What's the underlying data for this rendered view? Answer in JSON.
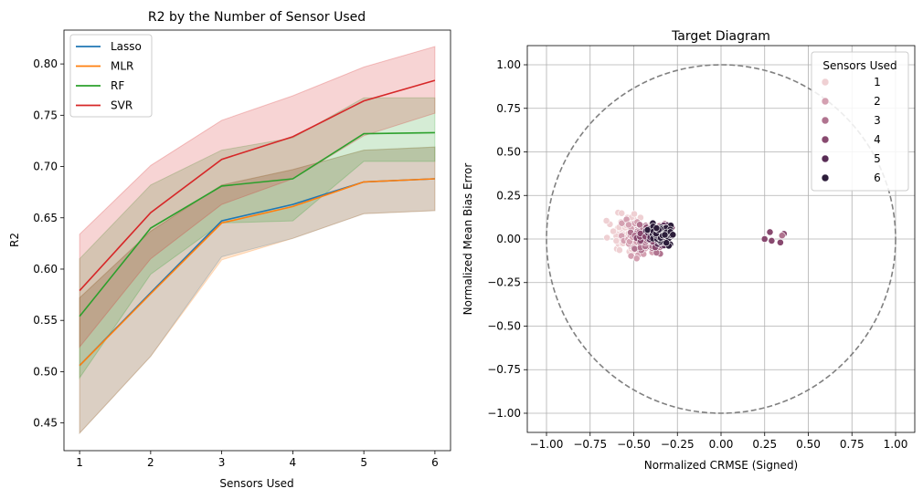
{
  "chart_data": [
    {
      "type": "line",
      "title": "R2 by the Number of Sensor Used",
      "xlabel": "Sensors Used",
      "ylabel": "R2",
      "x": [
        1,
        2,
        3,
        4,
        5,
        6
      ],
      "xlim": [
        0.78,
        6.22
      ],
      "ylim": [
        0.423,
        0.833
      ],
      "xticks": [
        "1",
        "2",
        "3",
        "4",
        "5",
        "6"
      ],
      "yticks": [
        "0.45",
        "0.50",
        "0.55",
        "0.60",
        "0.65",
        "0.70",
        "0.75",
        "0.80"
      ],
      "ytick_values": [
        0.45,
        0.5,
        0.55,
        0.6,
        0.65,
        0.7,
        0.75,
        0.8
      ],
      "legend": "upper-left",
      "series": [
        {
          "name": "Lasso",
          "color": "#1f77b4",
          "values": [
            0.506,
            0.577,
            0.647,
            0.663,
            0.685,
            0.688
          ],
          "ci_low": [
            0.44,
            0.515,
            0.612,
            0.63,
            0.654,
            0.657
          ],
          "ci_high": [
            0.572,
            0.637,
            0.682,
            0.697,
            0.716,
            0.719
          ]
        },
        {
          "name": "MLR",
          "color": "#ff7f0e",
          "values": [
            0.506,
            0.576,
            0.645,
            0.661,
            0.685,
            0.688
          ],
          "ci_low": [
            0.44,
            0.515,
            0.609,
            0.63,
            0.654,
            0.657
          ],
          "ci_high": [
            0.572,
            0.637,
            0.682,
            0.697,
            0.716,
            0.719
          ]
        },
        {
          "name": "RF",
          "color": "#2ca02c",
          "values": [
            0.554,
            0.64,
            0.681,
            0.688,
            0.732,
            0.733
          ],
          "ci_low": [
            0.494,
            0.595,
            0.645,
            0.647,
            0.705,
            0.705
          ],
          "ci_high": [
            0.61,
            0.682,
            0.716,
            0.728,
            0.767,
            0.767
          ]
        },
        {
          "name": "SVR",
          "color": "#d62728",
          "values": [
            0.579,
            0.655,
            0.707,
            0.729,
            0.764,
            0.784
          ],
          "ci_low": [
            0.524,
            0.61,
            0.663,
            0.688,
            0.73,
            0.752
          ],
          "ci_high": [
            0.634,
            0.701,
            0.745,
            0.769,
            0.797,
            0.817
          ]
        }
      ]
    },
    {
      "type": "scatter",
      "title": "Target Diagram",
      "xlabel": "Normalized CRMSE (Signed)",
      "ylabel": "Normalized Mean Bias Error",
      "xlim": [
        -1.11,
        1.11
      ],
      "ylim": [
        -1.11,
        1.11
      ],
      "xticks": [
        "−1.00",
        "−0.75",
        "−0.50",
        "−0.25",
        "0.00",
        "0.25",
        "0.50",
        "0.75",
        "1.00"
      ],
      "xtick_values": [
        -1.0,
        -0.75,
        -0.5,
        -0.25,
        0.0,
        0.25,
        0.5,
        0.75,
        1.0
      ],
      "yticks": [
        "−1.00",
        "−0.75",
        "−0.50",
        "−0.25",
        "0.00",
        "0.25",
        "0.50",
        "0.75",
        "1.00"
      ],
      "ytick_values": [
        -1.0,
        -0.75,
        -0.5,
        -0.25,
        0.0,
        0.25,
        0.5,
        0.75,
        1.0
      ],
      "grid": true,
      "reference_circle_radius": 1.0,
      "legend": "upper-right",
      "legend_title": "Sensors Used",
      "hue_levels": [
        {
          "name": "1",
          "color": "#efd0d3"
        },
        {
          "name": "2",
          "color": "#d4a0b1"
        },
        {
          "name": "3",
          "color": "#b0738f"
        },
        {
          "name": "4",
          "color": "#88496f"
        },
        {
          "name": "5",
          "color": "#582c55"
        },
        {
          "name": "6",
          "color": "#2c1d3a"
        }
      ],
      "clusters": [
        {
          "level": 1,
          "x_range": [
            -0.69,
            -0.4
          ],
          "y_range": [
            -0.16,
            0.23
          ],
          "n": 70
        },
        {
          "level": 2,
          "x_range": [
            -0.62,
            -0.33
          ],
          "y_range": [
            -0.15,
            0.17
          ],
          "n": 75
        },
        {
          "level": 3,
          "x_range": [
            -0.55,
            -0.28
          ],
          "y_range": [
            -0.13,
            0.16
          ],
          "n": 75
        },
        {
          "level": 4,
          "x_range": [
            -0.5,
            -0.26
          ],
          "y_range": [
            -0.1,
            0.14
          ],
          "n": 70
        },
        {
          "level": 5,
          "x_range": [
            -0.45,
            -0.24
          ],
          "y_range": [
            -0.08,
            0.12
          ],
          "n": 60
        },
        {
          "level": 6,
          "x_range": [
            -0.44,
            -0.24
          ],
          "y_range": [
            -0.07,
            0.12
          ],
          "n": 55
        }
      ],
      "points": [
        {
          "level": 4,
          "x": 0.25,
          "y": 0.0
        },
        {
          "level": 4,
          "x": 0.28,
          "y": 0.04
        },
        {
          "level": 4,
          "x": 0.29,
          "y": -0.01
        },
        {
          "level": 4,
          "x": 0.34,
          "y": -0.02
        },
        {
          "level": 4,
          "x": 0.36,
          "y": 0.03
        },
        {
          "level": 3,
          "x": 0.35,
          "y": 0.02
        }
      ]
    }
  ]
}
